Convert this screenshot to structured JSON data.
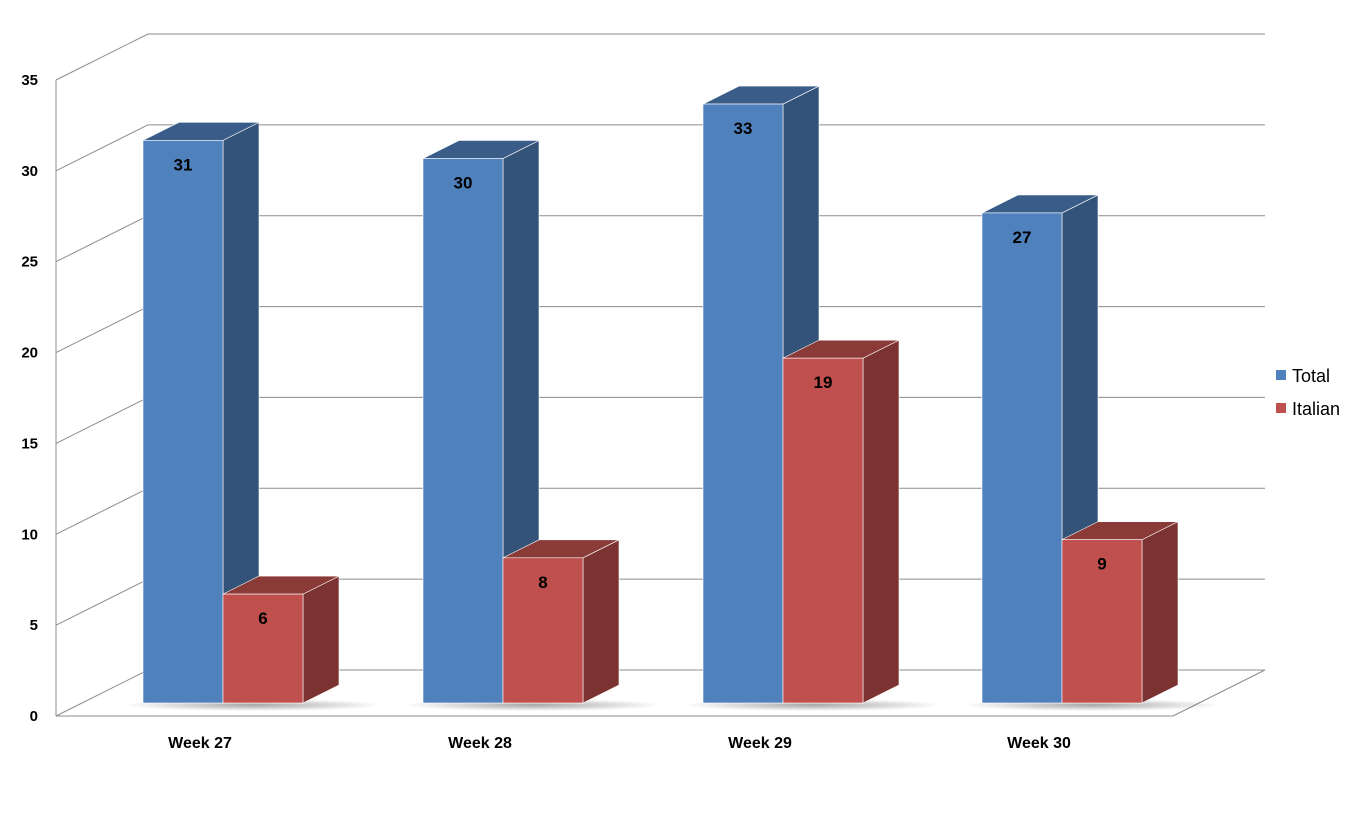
{
  "chart_data": {
    "type": "bar",
    "categories": [
      "Week 27",
      "Week 28",
      "Week 29",
      "Week 30"
    ],
    "series": [
      {
        "name": "Total",
        "values": [
          31,
          30,
          33,
          27
        ],
        "color": "#4F81BD"
      },
      {
        "name": "Italian",
        "values": [
          6,
          8,
          19,
          9
        ],
        "color": "#C0504D"
      }
    ],
    "y_ticks": [
      "0",
      "5",
      "10",
      "15",
      "20",
      "25",
      "30",
      "35"
    ],
    "ylim": [
      0,
      35
    ],
    "grid": true,
    "legend_position": "right",
    "three_d": true
  }
}
